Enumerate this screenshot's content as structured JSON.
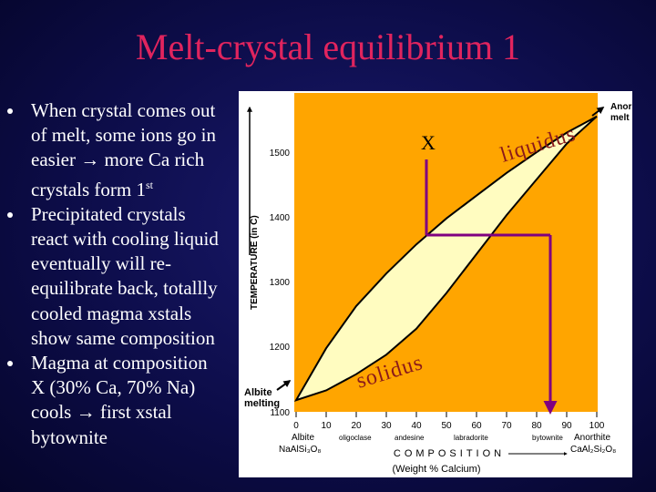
{
  "slide": {
    "title": "Melt-crystal equilibrium 1",
    "bullets": [
      {
        "lines": [
          "When crystal comes out",
          "of melt, some ions go in",
          "easier → more Ca rich",
          "crystals form 1"
        ],
        "sup": "st"
      },
      {
        "lines": [
          "Precipitated crystals",
          "react with cooling liquid",
          "eventually will re-",
          "equilibrate back, totallly",
          "cooled magma xstals",
          "show same composition"
        ]
      },
      {
        "lines": [
          "Magma at composition",
          "X (30% Ca, 70% Na)",
          "cools → first xstal",
          "bytownite"
        ]
      }
    ]
  },
  "diagram": {
    "colors": {
      "liquid_field": "#ffa500",
      "two_phase_field": "#fffcc0",
      "arrow": "#800080",
      "curve_label": "#8b1a1a"
    },
    "labels": {
      "x_marker": "X",
      "liquidus": "liquidus",
      "solidus": "solidus",
      "albite_melting": [
        "Albite",
        "melting"
      ],
      "anorthite_melting": [
        "Anor",
        "melt"
      ],
      "y_axis": "TEMPERATURE (in C)",
      "x_axis": "COMPOSITION",
      "x_axis_units": "(Weight % Calcium)",
      "albite": [
        "Albite",
        "NaAlSi₃O₈"
      ],
      "anorthite": [
        "Anorthite",
        "CaAl₂Si₂O₈"
      ],
      "minerals": [
        "oligoclase",
        "andesine",
        "labradorite",
        "bytownite"
      ]
    },
    "y_ticks": [
      1500,
      1400,
      1300,
      1200,
      1100
    ],
    "x_ticks": [
      0,
      10,
      20,
      30,
      40,
      50,
      60,
      70,
      80,
      90,
      100
    ],
    "chart_data": {
      "type": "line",
      "xlabel": "(Weight % Calcium)",
      "ylabel": "TEMPERATURE (in C)",
      "xlim": [
        0,
        100
      ],
      "series": [
        {
          "name": "liquidus",
          "x": [
            0,
            10,
            20,
            30,
            40,
            50,
            60,
            70,
            80,
            90,
            100
          ],
          "y": [
            1118,
            1198,
            1263,
            1313,
            1358,
            1398,
            1433,
            1468,
            1500,
            1530,
            1555
          ]
        },
        {
          "name": "solidus",
          "x": [
            0,
            10,
            20,
            30,
            40,
            50,
            60,
            70,
            80,
            90,
            100
          ],
          "y": [
            1118,
            1133,
            1158,
            1188,
            1228,
            1283,
            1343,
            1403,
            1458,
            1513,
            1555
          ]
        }
      ]
    }
  }
}
